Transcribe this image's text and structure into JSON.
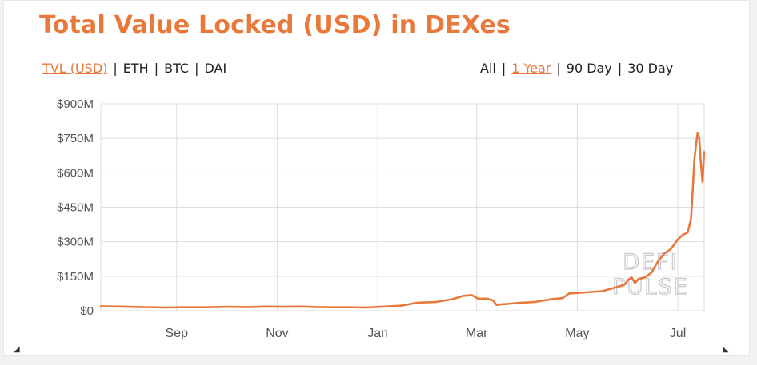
{
  "title": "Total Value Locked (USD) in DEXes",
  "currency_options": [
    {
      "label": "TVL (USD)",
      "active": true
    },
    {
      "label": "ETH",
      "active": false
    },
    {
      "label": "BTC",
      "active": false
    },
    {
      "label": "DAI",
      "active": false
    }
  ],
  "range_options": [
    {
      "label": "All",
      "active": false
    },
    {
      "label": "1 Year",
      "active": true
    },
    {
      "label": "90 Day",
      "active": false
    },
    {
      "label": "30 Day",
      "active": false
    }
  ],
  "watermark": [
    "DEFI",
    "PULSE"
  ],
  "colors": {
    "accent": "#e8793a",
    "text": "#222222",
    "grid": "#dddddd",
    "axis_text": "#555555"
  },
  "chart_data": {
    "type": "line",
    "title": "Total Value Locked (USD) in DEXes",
    "xlabel": "",
    "ylabel": "",
    "ylim": [
      0,
      900
    ],
    "y_unit": "M USD",
    "yticks": [
      0,
      150,
      300,
      450,
      600,
      750,
      900
    ],
    "ytick_labels": [
      "$0",
      "$150M",
      "$300M",
      "$450M",
      "$600M",
      "$750M",
      "$900M"
    ],
    "xlim": [
      "2019-07-17",
      "2020-07-17"
    ],
    "xticks": [
      "2019-09-01",
      "2019-11-01",
      "2020-01-01",
      "2020-03-01",
      "2020-05-01",
      "2020-07-01"
    ],
    "xtick_labels": [
      "Sep",
      "Nov",
      "Jan",
      "Mar",
      "May",
      "Jul"
    ],
    "grid": true,
    "legend": "none",
    "series": [
      {
        "color": "#e8793a",
        "points": [
          [
            "2019-07-17",
            19
          ],
          [
            "2019-07-28",
            18
          ],
          [
            "2019-08-10",
            16
          ],
          [
            "2019-08-25",
            14
          ],
          [
            "2019-09-05",
            15
          ],
          [
            "2019-09-20",
            15
          ],
          [
            "2019-10-01",
            17
          ],
          [
            "2019-10-15",
            16
          ],
          [
            "2019-10-25",
            18
          ],
          [
            "2019-11-05",
            17
          ],
          [
            "2019-11-15",
            18
          ],
          [
            "2019-11-25",
            16
          ],
          [
            "2019-12-05",
            15
          ],
          [
            "2019-12-15",
            15
          ],
          [
            "2019-12-25",
            14
          ],
          [
            "2020-01-05",
            18
          ],
          [
            "2020-01-15",
            22
          ],
          [
            "2020-01-25",
            35
          ],
          [
            "2020-02-05",
            38
          ],
          [
            "2020-02-15",
            50
          ],
          [
            "2020-02-22",
            65
          ],
          [
            "2020-02-27",
            68
          ],
          [
            "2020-03-02",
            52
          ],
          [
            "2020-03-07",
            53
          ],
          [
            "2020-03-11",
            45
          ],
          [
            "2020-03-13",
            25
          ],
          [
            "2020-03-16",
            28
          ],
          [
            "2020-03-20",
            30
          ],
          [
            "2020-03-28",
            35
          ],
          [
            "2020-04-05",
            38
          ],
          [
            "2020-04-15",
            50
          ],
          [
            "2020-04-22",
            55
          ],
          [
            "2020-04-26",
            75
          ],
          [
            "2020-05-06",
            80
          ],
          [
            "2020-05-16",
            85
          ],
          [
            "2020-05-21",
            95
          ],
          [
            "2020-05-26",
            105
          ],
          [
            "2020-05-30",
            115
          ],
          [
            "2020-06-01",
            135
          ],
          [
            "2020-06-03",
            145
          ],
          [
            "2020-06-05",
            120
          ],
          [
            "2020-06-07",
            138
          ],
          [
            "2020-06-11",
            145
          ],
          [
            "2020-06-15",
            165
          ],
          [
            "2020-06-19",
            215
          ],
          [
            "2020-06-23",
            250
          ],
          [
            "2020-06-27",
            270
          ],
          [
            "2020-07-01",
            310
          ],
          [
            "2020-07-04",
            330
          ],
          [
            "2020-07-07",
            340
          ],
          [
            "2020-07-09",
            400
          ],
          [
            "2020-07-10",
            520
          ],
          [
            "2020-07-11",
            650
          ],
          [
            "2020-07-12",
            720
          ],
          [
            "2020-07-13",
            775
          ],
          [
            "2020-07-14",
            750
          ],
          [
            "2020-07-15",
            640
          ],
          [
            "2020-07-16",
            560
          ],
          [
            "2020-07-17",
            690
          ]
        ]
      }
    ]
  }
}
